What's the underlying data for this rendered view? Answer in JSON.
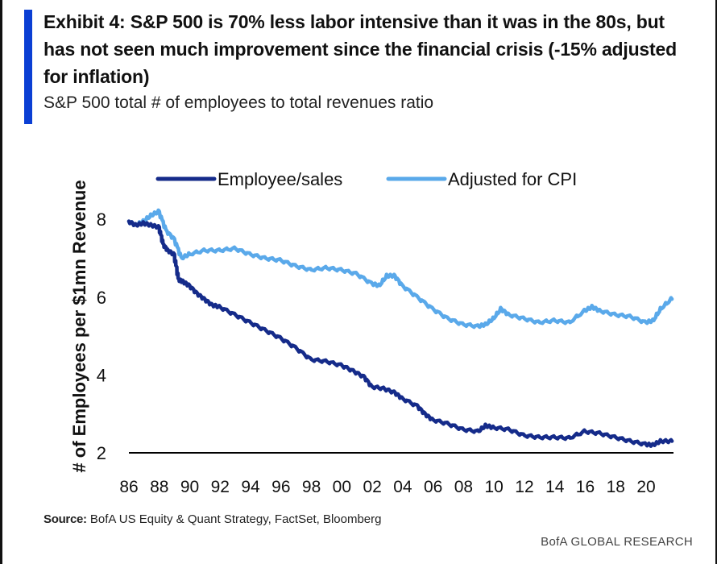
{
  "header": {
    "title": "Exhibit 4: S&P 500 is 70% less labor intensive than it was in the 80s, but has not seen much improvement since the financial crisis (-15% adjusted for inflation)",
    "subtitle": "S&P 500 total # of employees to total revenues ratio"
  },
  "footer": {
    "source_label": "Source:",
    "source_text": "BofA US Equity & Quant Strategy, FactSet, Bloomberg",
    "brand": "BofA GLOBAL RESEARCH"
  },
  "colors": {
    "accent": "#0b3fd4",
    "series_dark": "#152b8a",
    "series_light": "#5aa9ea"
  },
  "chart_data": {
    "type": "line",
    "title": "",
    "xlabel": "",
    "ylabel": "# of Employees per $1mn Revenue",
    "ylim": [
      2,
      8.5
    ],
    "xlim": [
      1986,
      2021.8
    ],
    "grid": false,
    "legend_position": "top",
    "y_ticks": [
      {
        "value": 2,
        "label": "2"
      },
      {
        "value": 4,
        "label": "4"
      },
      {
        "value": 6,
        "label": "6"
      },
      {
        "value": 8,
        "label": "8"
      }
    ],
    "x_ticks": [
      {
        "value": 1986,
        "label": "86"
      },
      {
        "value": 1988,
        "label": "88"
      },
      {
        "value": 1990,
        "label": "90"
      },
      {
        "value": 1992,
        "label": "92"
      },
      {
        "value": 1994,
        "label": "94"
      },
      {
        "value": 1996,
        "label": "96"
      },
      {
        "value": 1998,
        "label": "98"
      },
      {
        "value": 2000,
        "label": "00"
      },
      {
        "value": 2002,
        "label": "02"
      },
      {
        "value": 2004,
        "label": "04"
      },
      {
        "value": 2006,
        "label": "06"
      },
      {
        "value": 2008,
        "label": "08"
      },
      {
        "value": 2010,
        "label": "10"
      },
      {
        "value": 2012,
        "label": "12"
      },
      {
        "value": 2014,
        "label": "14"
      },
      {
        "value": 2016,
        "label": "16"
      },
      {
        "value": 2018,
        "label": "18"
      },
      {
        "value": 2020,
        "label": "20"
      }
    ],
    "series": [
      {
        "name": "Employee/sales",
        "key": "dark",
        "x": [
          1986.0,
          1986.5,
          1987.0,
          1987.5,
          1988.0,
          1988.3,
          1988.6,
          1989.0,
          1989.3,
          1989.6,
          1990.0,
          1990.5,
          1991.0,
          1991.5,
          1992.0,
          1993.0,
          1994.0,
          1995.0,
          1996.0,
          1997.0,
          1998.0,
          1999.0,
          2000.0,
          2000.8,
          2001.5,
          2002.0,
          2002.8,
          2003.5,
          2004.0,
          2005.0,
          2005.5,
          2006.0,
          2007.0,
          2008.0,
          2009.0,
          2009.5,
          2010.0,
          2011.0,
          2012.0,
          2013.0,
          2014.0,
          2015.0,
          2016.0,
          2017.0,
          2018.0,
          2019.0,
          2020.0,
          2020.5,
          2021.0,
          2021.7
        ],
        "values": [
          7.95,
          7.85,
          7.9,
          7.85,
          7.8,
          7.35,
          7.2,
          7.1,
          6.45,
          6.4,
          6.3,
          6.1,
          5.95,
          5.8,
          5.75,
          5.55,
          5.35,
          5.15,
          4.95,
          4.7,
          4.4,
          4.35,
          4.25,
          4.1,
          3.95,
          3.7,
          3.65,
          3.55,
          3.4,
          3.2,
          3.0,
          2.85,
          2.75,
          2.6,
          2.55,
          2.7,
          2.65,
          2.6,
          2.45,
          2.4,
          2.4,
          2.38,
          2.55,
          2.5,
          2.4,
          2.3,
          2.22,
          2.2,
          2.3,
          2.3
        ]
      },
      {
        "name": "Adjusted for CPI",
        "key": "light",
        "x": [
          1986.0,
          1986.5,
          1987.0,
          1987.5,
          1988.0,
          1988.5,
          1989.0,
          1989.5,
          1990.0,
          1991.0,
          1992.0,
          1993.0,
          1994.0,
          1995.0,
          1996.0,
          1997.0,
          1998.0,
          1999.0,
          2000.0,
          2001.0,
          2002.0,
          2002.5,
          2003.0,
          2003.5,
          2004.0,
          2005.0,
          2006.0,
          2007.0,
          2008.0,
          2009.0,
          2009.5,
          2010.0,
          2010.5,
          2011.0,
          2012.0,
          2013.0,
          2014.0,
          2015.0,
          2016.0,
          2016.5,
          2017.0,
          2018.0,
          2019.0,
          2020.0,
          2020.5,
          2021.0,
          2021.7
        ],
        "values": [
          7.95,
          7.85,
          7.95,
          8.1,
          8.2,
          7.7,
          7.5,
          7.0,
          7.1,
          7.2,
          7.2,
          7.25,
          7.1,
          7.0,
          6.95,
          6.8,
          6.7,
          6.75,
          6.7,
          6.6,
          6.35,
          6.3,
          6.55,
          6.55,
          6.3,
          6.0,
          5.7,
          5.45,
          5.3,
          5.25,
          5.3,
          5.45,
          5.7,
          5.55,
          5.45,
          5.35,
          5.4,
          5.35,
          5.65,
          5.75,
          5.65,
          5.55,
          5.5,
          5.35,
          5.4,
          5.7,
          5.95
        ]
      }
    ]
  }
}
